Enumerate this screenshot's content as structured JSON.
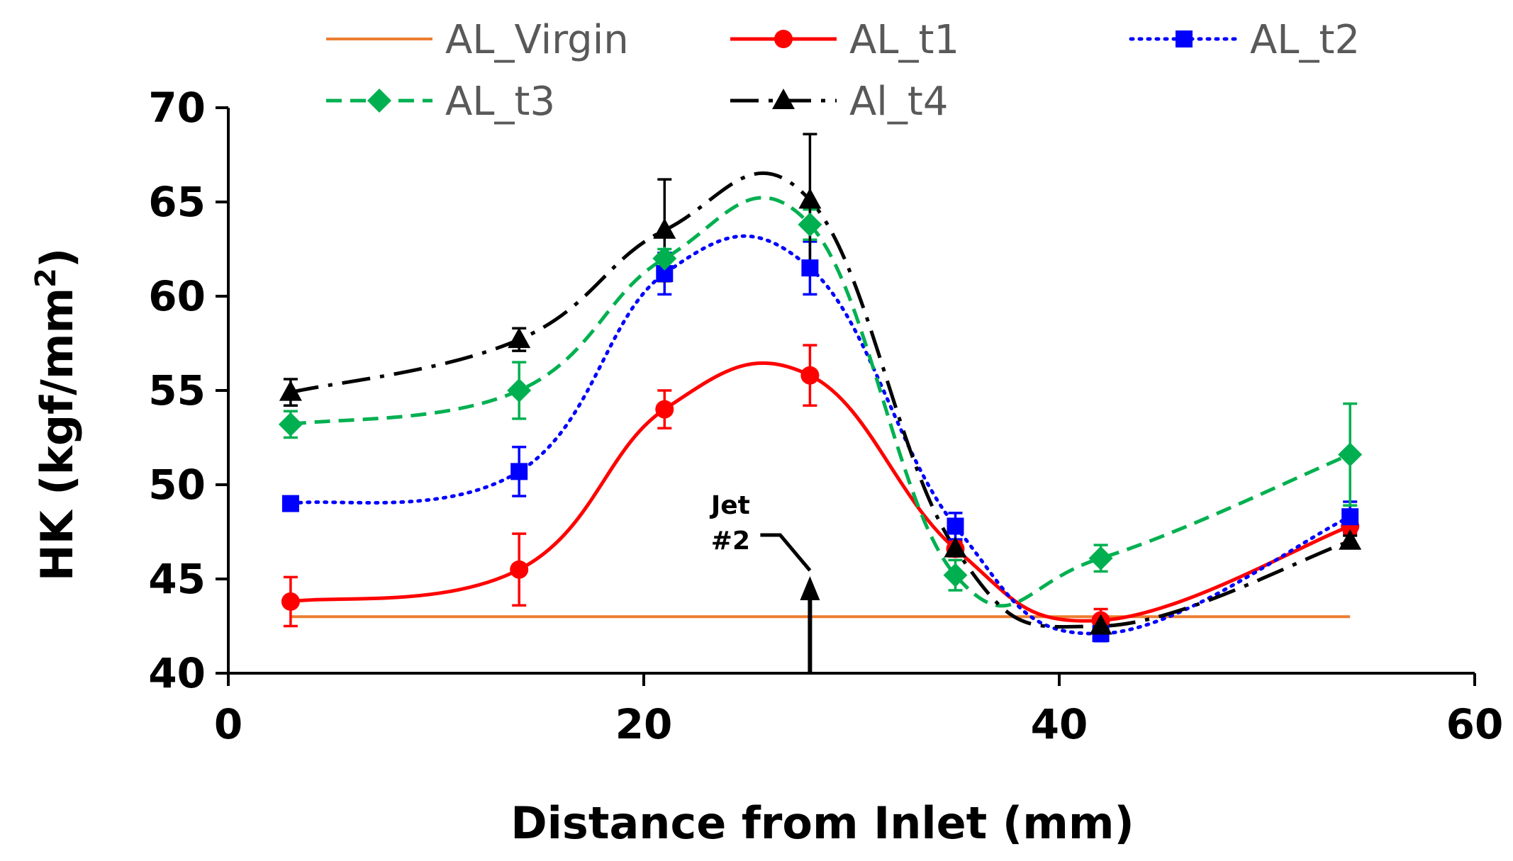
{
  "chart_data": {
    "type": "line",
    "title": "",
    "xlabel": "Distance from Inlet (mm)",
    "ylabel_main": "HK (kgf/mm",
    "ylabel_sup": "2",
    "ylabel_end": ")",
    "xlim": [
      0,
      60
    ],
    "ylim": [
      40,
      70
    ],
    "xticks": [
      "0",
      "20",
      "40",
      "60"
    ],
    "yticks": [
      "40",
      "45",
      "50",
      "55",
      "60",
      "65",
      "70"
    ],
    "grid": false,
    "legend_position": "top",
    "x": [
      3,
      14,
      21,
      28,
      35,
      42,
      54
    ],
    "series": [
      {
        "name": "AL_Virgin",
        "color": "#ED7D31",
        "style": "solid",
        "marker": "none",
        "values": [
          43,
          43,
          43,
          43,
          43,
          43,
          43
        ],
        "errors": [
          0,
          0,
          0,
          0,
          0,
          0,
          0
        ]
      },
      {
        "name": "AL_t1",
        "color": "#FF0000",
        "style": "solid",
        "marker": "circle",
        "values": [
          43.8,
          45.5,
          54.0,
          55.8,
          46.6,
          42.8,
          47.8
        ],
        "errors": [
          1.3,
          1.9,
          1.0,
          1.6,
          0.4,
          0.6,
          0.4
        ]
      },
      {
        "name": "AL_t2",
        "color": "#0000FF",
        "style": "dotted",
        "marker": "square",
        "values": [
          49.0,
          50.7,
          61.2,
          61.5,
          47.8,
          42.1,
          48.3
        ],
        "errors": [
          0.3,
          1.3,
          1.1,
          1.4,
          0.7,
          0.4,
          0.8
        ]
      },
      {
        "name": "AL_t3",
        "color": "#00B050",
        "style": "dashed",
        "marker": "diamond",
        "values": [
          53.2,
          55.0,
          62.0,
          63.8,
          45.2,
          46.1,
          51.6
        ],
        "errors": [
          0.7,
          1.5,
          0.5,
          0.8,
          0.8,
          0.7,
          2.7
        ]
      },
      {
        "name": "Al_t4",
        "color": "#000000",
        "style": "dashdot",
        "marker": "triangle",
        "values": [
          54.9,
          57.7,
          63.5,
          65.1,
          46.6,
          42.5,
          47.0
        ],
        "errors": [
          0.7,
          0.6,
          2.7,
          3.5,
          0.3,
          0.4,
          0.3
        ]
      }
    ],
    "annotations": [
      {
        "line1": "Jet",
        "line2": "#2",
        "x": 28,
        "y": 45
      }
    ]
  }
}
